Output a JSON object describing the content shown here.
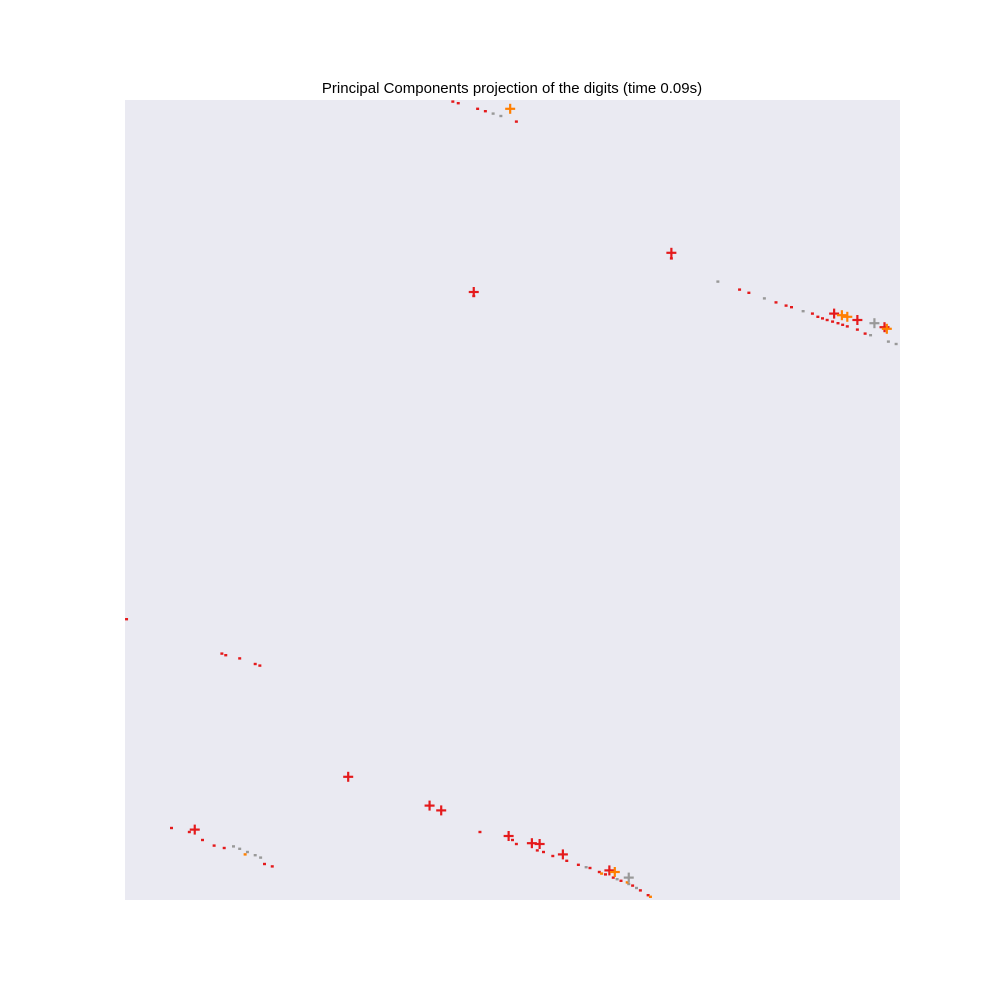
{
  "chart_data": {
    "type": "scatter",
    "title": "Principal Components projection of the digits (time 0.09s)",
    "xlabel": "",
    "ylabel": "",
    "xlim": [
      0,
      100
    ],
    "ylim": [
      0,
      100
    ],
    "grid": false,
    "axes_visible": false,
    "background_color": "#eaeaf2",
    "point_colors": {
      "red": "#e41a1c",
      "orange": "#ff7f00",
      "gray": "#999999"
    },
    "series": [
      {
        "marker": "dot",
        "color": "red",
        "points": [
          [
            42.3,
            99.8
          ],
          [
            43.0,
            99.6
          ],
          [
            45.5,
            98.9
          ],
          [
            46.5,
            98.6
          ],
          [
            50.5,
            97.3
          ],
          [
            79.3,
            76.3
          ],
          [
            80.5,
            75.9
          ],
          [
            84.0,
            74.7
          ],
          [
            85.3,
            74.3
          ],
          [
            86.0,
            74.1
          ],
          [
            88.7,
            73.3
          ],
          [
            89.4,
            72.9
          ],
          [
            90.0,
            72.7
          ],
          [
            90.6,
            72.5
          ],
          [
            91.3,
            72.3
          ],
          [
            92.0,
            72.1
          ],
          [
            92.6,
            71.9
          ],
          [
            93.2,
            71.7
          ],
          [
            94.5,
            71.3
          ],
          [
            95.5,
            70.8
          ],
          [
            70.5,
            80.2
          ],
          [
            45.0,
            75.5
          ],
          [
            0.2,
            35.1
          ],
          [
            12.5,
            30.8
          ],
          [
            13.0,
            30.6
          ],
          [
            14.8,
            30.2
          ],
          [
            16.8,
            29.5
          ],
          [
            17.4,
            29.3
          ],
          [
            6.0,
            9.0
          ],
          [
            8.3,
            8.5
          ],
          [
            10.0,
            7.5
          ],
          [
            11.5,
            6.8
          ],
          [
            12.8,
            6.5
          ],
          [
            18.0,
            4.5
          ],
          [
            19.0,
            4.2
          ],
          [
            45.8,
            8.5
          ],
          [
            50.0,
            7.5
          ],
          [
            50.5,
            7.0
          ],
          [
            53.2,
            6.2
          ],
          [
            54.0,
            6.0
          ],
          [
            55.2,
            5.5
          ],
          [
            57.0,
            4.9
          ],
          [
            58.5,
            4.4
          ],
          [
            60.0,
            4.0
          ],
          [
            61.2,
            3.5
          ],
          [
            62.0,
            3.2
          ],
          [
            63.0,
            2.8
          ],
          [
            64.0,
            2.4
          ],
          [
            65.5,
            1.8
          ],
          [
            66.5,
            1.2
          ],
          [
            67.5,
            0.6
          ]
        ]
      },
      {
        "marker": "dot",
        "color": "gray",
        "points": [
          [
            47.5,
            98.3
          ],
          [
            48.5,
            98.0
          ],
          [
            76.5,
            77.3
          ],
          [
            82.5,
            75.2
          ],
          [
            87.5,
            73.6
          ],
          [
            96.2,
            70.6
          ],
          [
            98.5,
            69.8
          ],
          [
            99.5,
            69.5
          ],
          [
            14.0,
            6.7
          ],
          [
            14.8,
            6.4
          ],
          [
            15.8,
            6.0
          ],
          [
            16.8,
            5.6
          ],
          [
            17.5,
            5.3
          ],
          [
            59.5,
            4.1
          ],
          [
            63.5,
            2.6
          ],
          [
            65.0,
            2.0
          ],
          [
            66.0,
            1.5
          ]
        ]
      },
      {
        "marker": "dot",
        "color": "orange",
        "points": [
          [
            15.5,
            5.7
          ],
          [
            61.5,
            3.3
          ],
          [
            64.8,
            2.2
          ],
          [
            67.8,
            0.4
          ]
        ]
      },
      {
        "marker": "plus",
        "color": "red",
        "points": [
          [
            70.5,
            80.9
          ],
          [
            45.0,
            76.0
          ],
          [
            91.5,
            73.3
          ],
          [
            94.5,
            72.5
          ],
          [
            98.0,
            71.6
          ],
          [
            28.8,
            15.4
          ],
          [
            39.3,
            11.8
          ],
          [
            40.8,
            11.2
          ],
          [
            9.0,
            8.8
          ],
          [
            49.5,
            8.0
          ],
          [
            52.5,
            7.1
          ],
          [
            53.5,
            7.0
          ],
          [
            56.5,
            5.7
          ],
          [
            62.5,
            3.7
          ]
        ]
      },
      {
        "marker": "plus",
        "color": "orange",
        "points": [
          [
            49.7,
            98.9
          ],
          [
            92.5,
            73.1
          ],
          [
            93.2,
            72.9
          ],
          [
            98.3,
            71.4
          ],
          [
            63.2,
            3.5
          ]
        ]
      },
      {
        "marker": "plus",
        "color": "gray",
        "points": [
          [
            96.7,
            72.1
          ],
          [
            65.0,
            2.8
          ]
        ]
      }
    ]
  }
}
